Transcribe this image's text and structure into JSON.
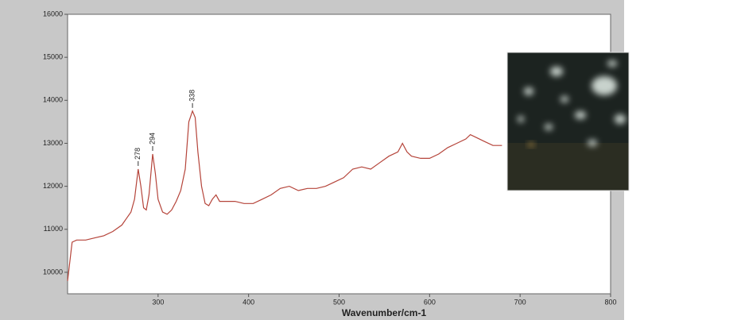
{
  "chart_data": {
    "type": "line",
    "x_label": "Wavenumber/cm-1",
    "x": [
      200,
      205,
      210,
      220,
      230,
      240,
      250,
      260,
      265,
      270,
      274,
      278,
      281,
      284,
      287,
      290,
      294,
      297,
      300,
      305,
      310,
      315,
      320,
      325,
      330,
      334,
      338,
      341,
      344,
      348,
      352,
      356,
      360,
      364,
      368,
      375,
      385,
      395,
      405,
      415,
      425,
      435,
      445,
      455,
      465,
      475,
      485,
      495,
      505,
      515,
      525,
      535,
      545,
      555,
      565,
      570,
      575,
      580,
      590,
      600,
      610,
      620,
      630,
      640,
      645,
      650,
      660,
      670,
      680
    ],
    "series": [
      {
        "color": "#b5443a",
        "values": [
          9800,
          10700,
          10750,
          10750,
          10800,
          10850,
          10950,
          11100,
          11250,
          11400,
          11700,
          12400,
          12000,
          11500,
          11450,
          11800,
          12750,
          12300,
          11700,
          11400,
          11350,
          11450,
          11650,
          11900,
          12400,
          13500,
          13750,
          13600,
          12800,
          12000,
          11600,
          11550,
          11700,
          11800,
          11650,
          11650,
          11650,
          11600,
          11600,
          11700,
          11800,
          11950,
          12000,
          11900,
          11950,
          11950,
          12000,
          12100,
          12200,
          12400,
          12450,
          12400,
          12550,
          12700,
          12800,
          13000,
          12800,
          12700,
          12650,
          12650,
          12750,
          12900,
          13000,
          13100,
          13200,
          13150,
          13050,
          12950,
          12950
        ]
      }
    ],
    "peaks": [
      278,
      294,
      338
    ],
    "xlim": [
      200,
      800
    ],
    "xticks": [
      300,
      400,
      500,
      600,
      700,
      800
    ],
    "ylim": [
      9500,
      16000
    ],
    "yticks": [
      10000,
      11000,
      12000,
      13000,
      14000,
      15000,
      16000
    ]
  }
}
